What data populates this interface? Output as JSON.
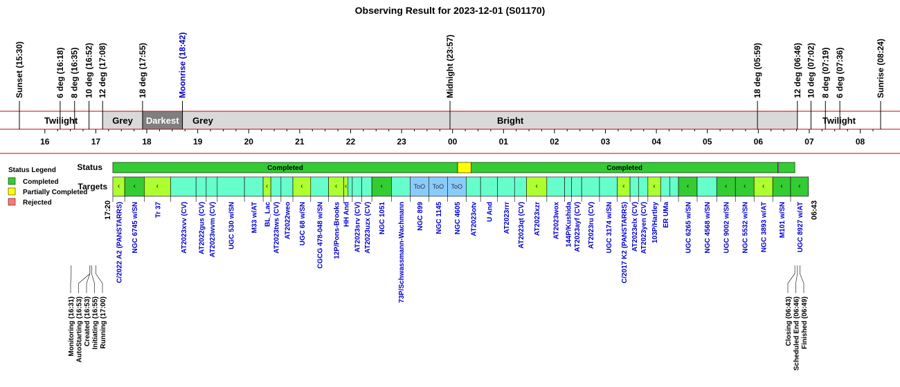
{
  "chart_data": {
    "type": "timeline",
    "title": "Observing Result for 2023-12-01 (S01170)",
    "events": [
      {
        "label": "Sunset (15:30)",
        "t": "15:30"
      },
      {
        "label": "6 deg (16:18)",
        "t": "16:18"
      },
      {
        "label": "8 deg (16:35)",
        "t": "16:35"
      },
      {
        "label": "10 deg (16:52)",
        "t": "16:52"
      },
      {
        "label": "12 deg (17:08)",
        "t": "17:08"
      },
      {
        "label": "18 deg (17:55)",
        "t": "17:55"
      },
      {
        "label": "Moonrise (18:42)",
        "t": "18:42",
        "color": "#0000cc"
      },
      {
        "label": "Midnight (23:57)",
        "t": "23:57"
      },
      {
        "label": "18 deg (05:59)",
        "t": "05:59"
      },
      {
        "label": "12 deg (06:46)",
        "t": "06:46"
      },
      {
        "label": "10 deg (07:02)",
        "t": "07:02"
      },
      {
        "label": "8 deg (07:19)",
        "t": "07:19"
      },
      {
        "label": "6 deg (07:36)",
        "t": "07:36"
      },
      {
        "label": "Sunrise (08:24)",
        "t": "08:24"
      }
    ],
    "sky_bands": [
      {
        "label": "Twilight",
        "start": "15:30",
        "end": "17:08",
        "color": "#ffffff",
        "text_color": "#000000"
      },
      {
        "label": "Grey",
        "start": "17:08",
        "end": "17:55",
        "color": "#d9d9d9",
        "text_color": "#000000"
      },
      {
        "label": "Darkest",
        "start": "17:55",
        "end": "18:42",
        "color": "#7f7f7f",
        "text_color": "#ffffff"
      },
      {
        "label": "Grey",
        "start": "18:42",
        "end": "19:30",
        "color": "#d9d9d9",
        "text_color": "#000000"
      },
      {
        "label": "Bright",
        "start": "19:30",
        "end": "06:46",
        "color": "#d9d9d9",
        "text_color": "#000000"
      },
      {
        "label": "Twilight",
        "start": "06:46",
        "end": "08:24",
        "color": "#ffffff",
        "text_color": "#000000"
      }
    ],
    "hour_ticks": [
      "16",
      "17",
      "18",
      "19",
      "20",
      "21",
      "22",
      "23",
      "00",
      "01",
      "02",
      "03",
      "04",
      "05",
      "06",
      "07",
      "08"
    ],
    "axis_range": [
      "15:30",
      "08:24"
    ],
    "row_labels": {
      "status": "Status",
      "targets": "Targets"
    },
    "legend": {
      "title": "Status Legend",
      "items": [
        {
          "label": "Completed",
          "color": "#33cc33"
        },
        {
          "label": "Partially Completed",
          "color": "#ffff00"
        },
        {
          "label": "Rejected",
          "color": "#ff7777"
        }
      ]
    },
    "status_segments": [
      {
        "label": "Completed",
        "start": "17:20",
        "end": "00:06",
        "color": "#33cc33"
      },
      {
        "label": "",
        "start": "00:06",
        "end": "00:22",
        "color": "#ffff00"
      },
      {
        "label": "Completed",
        "start": "00:22",
        "end": "06:23",
        "color": "#33cc33"
      },
      {
        "label": "",
        "start": "06:23",
        "end": "06:24",
        "color": "#ffffff"
      },
      {
        "label": "",
        "start": "06:24",
        "end": "06:43",
        "color": "#33cc33"
      }
    ],
    "start_label": "17:20",
    "end_label": "06:43",
    "targets": [
      {
        "label": "C/2022 A2 (PANSTARRS)",
        "start": "17:20",
        "end": "17:34",
        "fill": "#adff2f",
        "mark": "‹"
      },
      {
        "label": "NGC 6745 w/SN",
        "start": "17:34",
        "end": "17:57",
        "fill": "#33cc33",
        "mark": "‹"
      },
      {
        "label": "Tr 37",
        "start": "17:57",
        "end": "18:28",
        "fill": "#adff2f",
        "mark": "‹"
      },
      {
        "label": "AT2023xvv (CV)",
        "start": "18:28",
        "end": "18:58",
        "fill": "#66ffcc"
      },
      {
        "label": "AT2022gus (CV)",
        "start": "18:58",
        "end": "19:10",
        "fill": "#66ffcc"
      },
      {
        "label": "AT2023wvm (CV)",
        "start": "19:10",
        "end": "19:23",
        "fill": "#66ffcc"
      },
      {
        "label": "UGC 530 w/SN",
        "start": "19:23",
        "end": "19:55",
        "fill": "#66ffcc"
      },
      {
        "label": "M33 w/AT",
        "start": "19:55",
        "end": "20:17",
        "fill": "#66ffcc"
      },
      {
        "label": "BL_Lac",
        "start": "20:17",
        "end": "20:26",
        "fill": "#adff2f",
        "mark": "‹"
      },
      {
        "label": "AT2023tws (CV)",
        "start": "20:26",
        "end": "20:38",
        "fill": "#66ffcc"
      },
      {
        "label": "AT2022weo",
        "start": "20:38",
        "end": "20:52",
        "fill": "#66ffcc"
      },
      {
        "label": "UGC 68 w/SN",
        "start": "20:52",
        "end": "21:13",
        "fill": "#adff2f",
        "mark": "‹"
      },
      {
        "label": "CGCG 478-048 w/SN",
        "start": "21:13",
        "end": "21:34",
        "fill": "#66ffcc"
      },
      {
        "label": "12P/Pons-Brooks",
        "start": "21:34",
        "end": "21:52",
        "fill": "#adff2f",
        "mark": "‹"
      },
      {
        "label": "HH And",
        "start": "21:52",
        "end": "21:57",
        "fill": "#adff2f",
        "mark": "‹"
      },
      {
        "label": "",
        "start": "21:57",
        "end": "22:02",
        "fill": "#66ffcc"
      },
      {
        "label": "AT2023srv (CV)",
        "start": "22:02",
        "end": "22:13",
        "fill": "#66ffcc"
      },
      {
        "label": "AT2023uzx (CV)",
        "start": "22:13",
        "end": "22:25",
        "fill": "#66ffcc"
      },
      {
        "label": "NGC 1051",
        "start": "22:25",
        "end": "22:48",
        "fill": "#33cc33",
        "mark": "‹"
      },
      {
        "label": "73P/Schwassmann-Wachmann",
        "start": "22:48",
        "end": "23:10",
        "fill": "#66ffcc"
      },
      {
        "label": "NGC 899",
        "start": "23:10",
        "end": "23:32",
        "fill": "#88ccff",
        "mark": "ToO"
      },
      {
        "label": "NGC 1145",
        "start": "23:32",
        "end": "23:54",
        "fill": "#88ccff",
        "mark": "ToO"
      },
      {
        "label": "NGC 4605",
        "start": "23:54",
        "end": "00:16",
        "fill": "#88ccff",
        "mark": "ToO"
      },
      {
        "label": "AT2023otv",
        "start": "00:16",
        "end": "00:33",
        "fill": "#66ffcc"
      },
      {
        "label": "U And",
        "start": "00:33",
        "end": "00:53",
        "fill": "#66ffcc"
      },
      {
        "label": "AT2023rrr",
        "start": "00:53",
        "end": "01:13",
        "fill": "#66ffcc"
      },
      {
        "label": "AT2023qt (CV)",
        "start": "01:13",
        "end": "01:27",
        "fill": "#66ffcc"
      },
      {
        "label": "AT2023xzr",
        "start": "01:27",
        "end": "01:51",
        "fill": "#adff2f",
        "mark": "‹"
      },
      {
        "label": "AT2023wox",
        "start": "01:51",
        "end": "02:12",
        "fill": "#66ffcc"
      },
      {
        "label": "144P/Kushida",
        "start": "02:12",
        "end": "02:20",
        "fill": "#66ffcc"
      },
      {
        "label": "AT2023ayf (CV)",
        "start": "02:20",
        "end": "02:32",
        "fill": "#66ffcc"
      },
      {
        "label": "AT2023ru (CV)",
        "start": "02:32",
        "end": "02:53",
        "fill": "#66ffcc"
      },
      {
        "label": "UGC 3174 w/SN",
        "start": "02:53",
        "end": "03:14",
        "fill": "#66ffcc"
      },
      {
        "label": "C/2017 K2 (PANSTARRS)",
        "start": "03:14",
        "end": "03:29",
        "fill": "#adff2f",
        "mark": "‹"
      },
      {
        "label": "AT2023elx (CV)",
        "start": "03:29",
        "end": "03:39",
        "fill": "#66ffcc"
      },
      {
        "label": "AT2023yen (CV)",
        "start": "03:39",
        "end": "03:50",
        "fill": "#66ffcc"
      },
      {
        "label": "103P/Hartley",
        "start": "03:50",
        "end": "04:05",
        "fill": "#adff2f",
        "mark": "‹"
      },
      {
        "label": "ER UMa",
        "start": "04:05",
        "end": "04:16",
        "fill": "#66ffcc"
      },
      {
        "label": "",
        "start": "04:16",
        "end": "04:26",
        "fill": "#66ffcc"
      },
      {
        "label": "UGC 6265 w/SN",
        "start": "04:26",
        "end": "04:48",
        "fill": "#33cc33",
        "mark": "‹"
      },
      {
        "label": "NGC 4568 w/SN",
        "start": "04:48",
        "end": "05:11",
        "fill": "#66ffcc"
      },
      {
        "label": "UGC 9002 w/SN",
        "start": "05:11",
        "end": "05:33",
        "fill": "#33cc33",
        "mark": "‹"
      },
      {
        "label": "NGC 5532 w/SN",
        "start": "05:33",
        "end": "05:55",
        "fill": "#33cc33",
        "mark": "‹"
      },
      {
        "label": "NGC 3893 w/AT",
        "start": "05:55",
        "end": "06:17",
        "fill": "#adff2f",
        "mark": "‹"
      },
      {
        "label": "M101 w/SN",
        "start": "06:17",
        "end": "06:38",
        "fill": "#33cc33",
        "mark": "‹"
      },
      {
        "label": "UGC 8927 w/AT",
        "start": "06:38",
        "end": "06:59",
        "fill": "#33cc33",
        "mark": "‹"
      }
    ],
    "status_log": [
      {
        "label": "Monitoring (16:31)",
        "t": "16:31"
      },
      {
        "label": "AutoStarting (16:53)",
        "t": "16:53"
      },
      {
        "label": "Created (16:53)",
        "t": "16:53"
      },
      {
        "label": "Initiating (16:55)",
        "t": "16:55"
      },
      {
        "label": "Running (17:00)",
        "t": "17:00"
      },
      {
        "label": "Closing (06:43)",
        "t": "06:43"
      },
      {
        "label": "Scheduled End (06:46)",
        "t": "06:46"
      },
      {
        "label": "Finished (06:49)",
        "t": "06:49"
      }
    ]
  }
}
